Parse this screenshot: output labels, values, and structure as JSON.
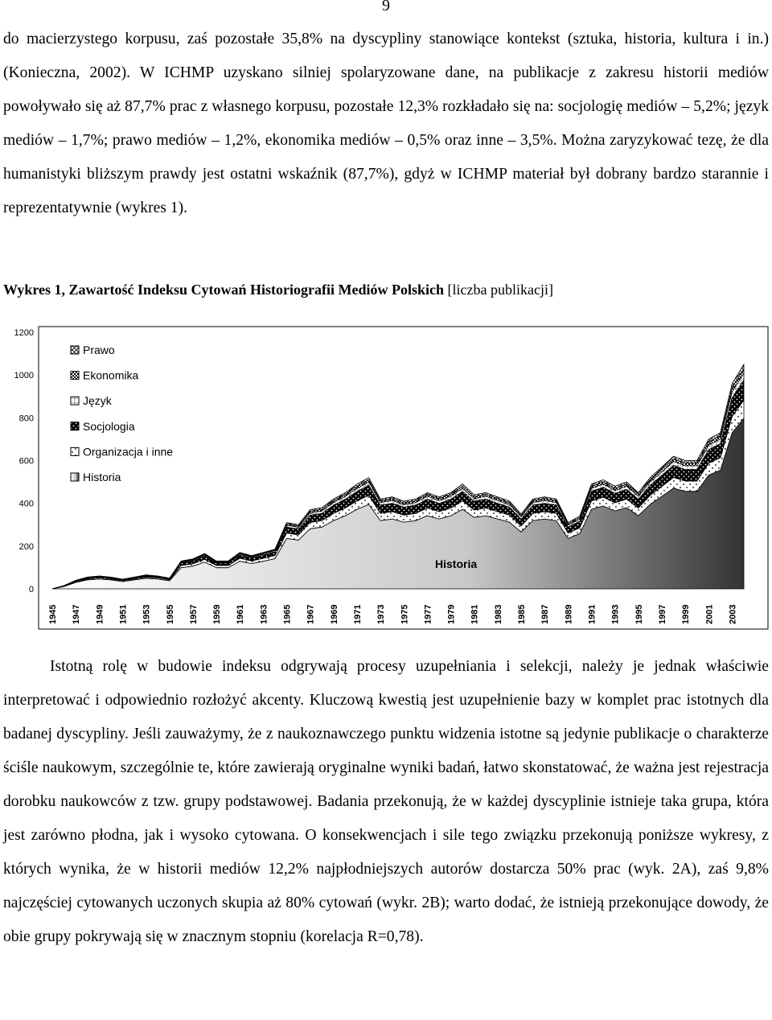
{
  "page_number": "9",
  "paragraph_1": "do macierzystego korpusu, zaś pozostałe 35,8% na dyscypliny stanowiące kontekst (sztuka, historia, kultura i in.) (Konieczna, 2002). W ICHMP uzyskano silniej spolaryzowane dane, na publikacje z zakresu historii mediów powoływało się aż 87,7% prac z własnego korpusu, pozostałe 12,3% rozkładało się na: socjologię mediów – 5,2%; język mediów – 1,7%; prawo mediów – 1,2%, ekonomika mediów – 0,5% oraz inne – 3,5%. Można zaryzykować tezę, że dla humanistyki bliższym prawdy jest ostatni wskaźnik (87,7%), gdyż w ICHMP materiał był dobrany bardzo starannie i reprezentatywnie (wykres 1).",
  "caption_bold": "Wykres 1, Zawartość Indeksu Cytowań Historiografii Mediów Polskich",
  "caption_rest": "[liczba publikacji]",
  "chart_data": {
    "type": "stacked-area",
    "annotation": "Historia",
    "categories": [
      "1945",
      null,
      "1947",
      null,
      "1949",
      null,
      "1951",
      null,
      "1953",
      null,
      "1955",
      null,
      "1957",
      null,
      "1959",
      null,
      "1961",
      null,
      "1963",
      null,
      "1965",
      null,
      "1967",
      null,
      "1969",
      null,
      "1971",
      null,
      "1973",
      null,
      "1975",
      null,
      "1977",
      null,
      "1979",
      null,
      "1981",
      null,
      "1983",
      null,
      "1985",
      null,
      "1987",
      null,
      "1989",
      null,
      "1991",
      null,
      "1993",
      null,
      "1995",
      null,
      "1997",
      null,
      "1999",
      null,
      "2001",
      null,
      "2003",
      null
    ],
    "ylim": [
      0,
      1200
    ],
    "yticks": [
      0,
      200,
      400,
      600,
      800,
      1000,
      1200
    ],
    "series": [
      {
        "name": "Historia",
        "color": "gradient",
        "values": [
          0,
          11,
          30,
          42,
          46,
          42,
          34,
          42,
          49,
          46,
          38,
          99,
          106,
          125,
          99,
          99,
          129,
          118,
          129,
          141,
          236,
          228,
          281,
          289,
          319,
          342,
          372,
          395,
          319,
          327,
          312,
          319,
          342,
          327,
          342,
          372,
          334,
          342,
          327,
          312,
          266,
          319,
          327,
          319,
          236,
          258,
          372,
          388,
          365,
          380,
          342,
          395,
          433,
          471,
          456,
          456,
          532,
          555,
          730,
          798
        ]
      },
      {
        "name": "Organizacja i inne",
        "color": "dots-white",
        "values": [
          0,
          1,
          3,
          4,
          5,
          4,
          4,
          4,
          5,
          5,
          4,
          10,
          11,
          13,
          10,
          10,
          14,
          12,
          14,
          15,
          25,
          24,
          30,
          30,
          34,
          36,
          39,
          42,
          34,
          34,
          33,
          34,
          36,
          34,
          36,
          39,
          35,
          36,
          34,
          33,
          28,
          34,
          34,
          34,
          25,
          27,
          39,
          41,
          38,
          40,
          36,
          42,
          46,
          50,
          48,
          48,
          56,
          58,
          77,
          84
        ]
      },
      {
        "name": "Socjologia",
        "color": "dots-black",
        "values": [
          0,
          2,
          4,
          5,
          5,
          5,
          4,
          5,
          6,
          5,
          5,
          12,
          13,
          15,
          12,
          12,
          15,
          14,
          15,
          17,
          28,
          27,
          33,
          34,
          38,
          41,
          44,
          47,
          38,
          39,
          37,
          38,
          41,
          39,
          41,
          44,
          40,
          41,
          39,
          37,
          32,
          38,
          39,
          38,
          28,
          31,
          44,
          46,
          43,
          45,
          41,
          47,
          51,
          56,
          54,
          54,
          63,
          66,
          86,
          95
        ]
      },
      {
        "name": "Język",
        "color": "cross-white",
        "values": [
          0,
          1,
          1,
          2,
          2,
          2,
          1,
          2,
          2,
          2,
          1,
          4,
          4,
          5,
          4,
          4,
          5,
          5,
          5,
          6,
          9,
          9,
          11,
          11,
          13,
          14,
          15,
          16,
          13,
          13,
          12,
          13,
          14,
          13,
          14,
          15,
          13,
          14,
          13,
          12,
          11,
          13,
          13,
          13,
          9,
          10,
          15,
          15,
          14,
          15,
          14,
          16,
          17,
          19,
          18,
          18,
          21,
          22,
          29,
          32
        ]
      },
      {
        "name": "Ekonomika",
        "color": "check-dark",
        "values": [
          0,
          0,
          1,
          1,
          1,
          1,
          1,
          1,
          2,
          1,
          1,
          3,
          3,
          4,
          3,
          3,
          4,
          3,
          4,
          3,
          6,
          6,
          8,
          8,
          8,
          9,
          10,
          10,
          8,
          9,
          8,
          8,
          9,
          9,
          9,
          10,
          9,
          9,
          9,
          8,
          7,
          8,
          9,
          8,
          6,
          7,
          10,
          10,
          10,
          10,
          9,
          10,
          12,
          12,
          12,
          12,
          14,
          15,
          19,
          21
        ]
      },
      {
        "name": "Prawo",
        "color": "hatch",
        "values": [
          0,
          0,
          1,
          1,
          1,
          1,
          1,
          1,
          1,
          1,
          1,
          2,
          3,
          3,
          2,
          2,
          3,
          3,
          3,
          3,
          6,
          6,
          7,
          8,
          8,
          8,
          10,
          10,
          8,
          8,
          8,
          8,
          8,
          8,
          8,
          10,
          9,
          8,
          8,
          8,
          6,
          8,
          8,
          8,
          6,
          7,
          10,
          10,
          10,
          10,
          8,
          10,
          11,
          12,
          12,
          12,
          14,
          14,
          19,
          20
        ]
      }
    ]
  },
  "paragraph_2": "Istotną rolę w budowie indeksu odgrywają procesy uzupełniania i selekcji, należy je jednak właściwie interpretować i odpowiednio rozłożyć akcenty. Kluczową kwestią jest uzupełnienie bazy w komplet prac istotnych dla badanej dyscypliny. Jeśli zauważymy, że z naukoznawczego punktu widzenia istotne są jedynie publikacje o charakterze ściśle naukowym, szczególnie te, które zawierają oryginalne wyniki badań, łatwo skonstatować, że ważna jest rejestracja dorobku naukowców z tzw. grupy podstawowej. Badania przekonują, że w każdej dyscyplinie istnieje taka grupa, która jest zarówno płodna, jak i wysoko cytowana. O konsekwencjach i sile tego związku przekonują poniższe wykresy, z których wynika, że w historii mediów 12,2% najpłodniejszych autorów dostarcza 50% prac (wyk. 2A), zaś 9,8% najczęściej cytowanych uczonych skupia aż 80% cytowań (wykr. 2B); warto dodać, że istnieją przekonujące dowody, że obie grupy pokrywają się w znacznym stopniu (korelacja R=0,78)."
}
